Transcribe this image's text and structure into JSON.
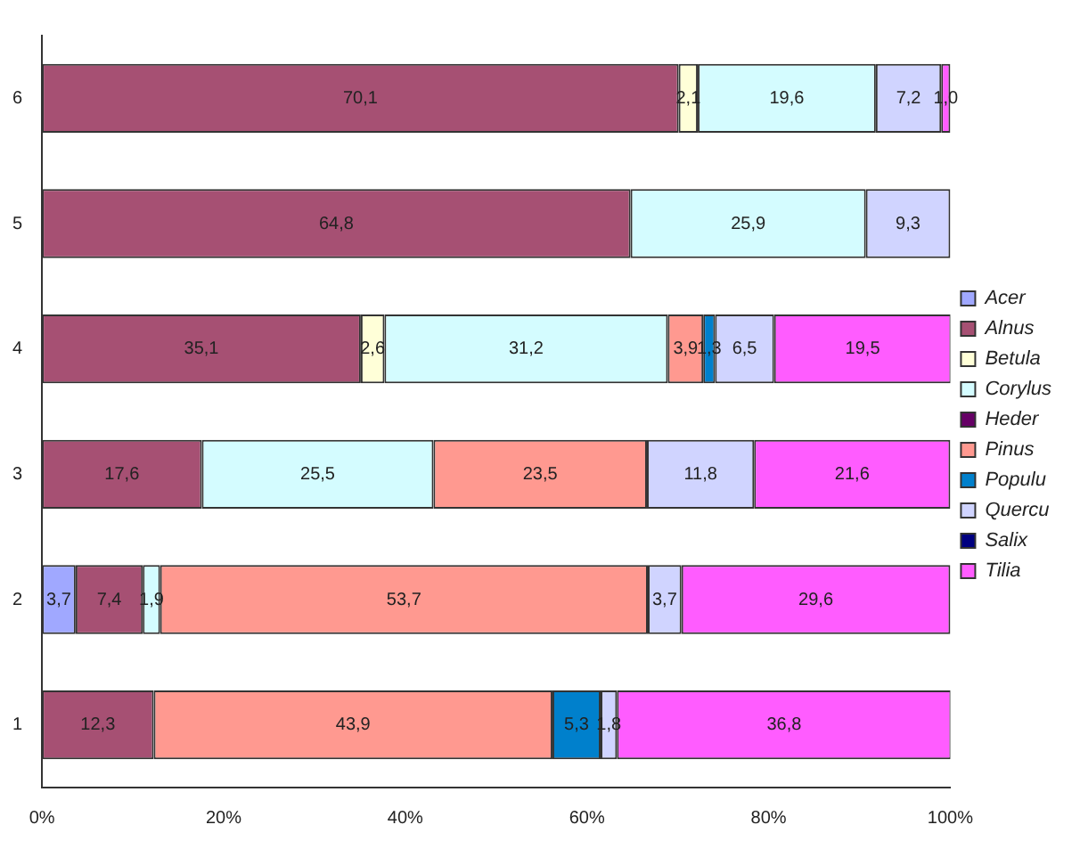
{
  "chart_data": {
    "type": "bar",
    "orientation": "horizontal",
    "stacked": true,
    "categories": [
      "6",
      "5",
      "4",
      "3",
      "2",
      "1"
    ],
    "series": [
      {
        "name": "Acer",
        "color": "#a0a8ff",
        "values": [
          null,
          null,
          null,
          null,
          3.7,
          null
        ],
        "value_labels": [
          null,
          null,
          null,
          null,
          "3,7",
          null
        ]
      },
      {
        "name": "Alnus",
        "color": "#a65073",
        "values": [
          70.1,
          64.8,
          35.1,
          17.6,
          7.4,
          12.3
        ],
        "value_labels": [
          "70,1",
          "64,8",
          "35,1",
          "17,6",
          "7,4",
          "12,3"
        ]
      },
      {
        "name": "Betula",
        "color": "#ffffd8",
        "values": [
          2.1,
          null,
          2.6,
          null,
          null,
          null
        ],
        "value_labels": [
          "2,1",
          null,
          "2,6",
          null,
          null,
          null
        ]
      },
      {
        "name": "Corylus",
        "color": "#d4fcff",
        "values": [
          19.6,
          25.9,
          31.2,
          25.5,
          1.9,
          null
        ],
        "value_labels": [
          "19,6",
          "25,9",
          "31,2",
          "25,5",
          "1,9",
          null
        ]
      },
      {
        "name": "Heder",
        "color": "#660066",
        "values": [
          null,
          null,
          null,
          null,
          null,
          null
        ]
      },
      {
        "name": "Pinus",
        "color": "#ff9990",
        "values": [
          null,
          null,
          3.9,
          23.5,
          53.7,
          43.9
        ],
        "value_labels": [
          null,
          null,
          "3,9",
          "23,5",
          "53,7",
          "43,9"
        ]
      },
      {
        "name": "Populu",
        "color": "#0080cc",
        "values": [
          null,
          null,
          1.3,
          null,
          null,
          5.3
        ],
        "value_labels": [
          null,
          null,
          "1,3",
          null,
          null,
          "5,3"
        ]
      },
      {
        "name": "Quercu",
        "color": "#d0d4ff",
        "values": [
          7.2,
          9.3,
          6.5,
          11.8,
          3.7,
          1.8
        ],
        "value_labels": [
          "7,2",
          "9,3",
          "6,5",
          "11,8",
          "3,7",
          "1,8"
        ]
      },
      {
        "name": "Salix",
        "color": "#000080",
        "values": [
          null,
          null,
          null,
          null,
          null,
          null
        ]
      },
      {
        "name": "Tilia",
        "color": "#ff5cff",
        "values": [
          1.0,
          null,
          19.5,
          21.6,
          29.6,
          36.8
        ],
        "value_labels": [
          "1,0",
          null,
          "19,5",
          "21,6",
          "29,6",
          "36,8"
        ]
      }
    ],
    "xlim": [
      0,
      100
    ],
    "xticks": [
      {
        "value": 0,
        "label": "0%"
      },
      {
        "value": 20,
        "label": "20%"
      },
      {
        "value": 40,
        "label": "40%"
      },
      {
        "value": 60,
        "label": "60%"
      },
      {
        "value": 80,
        "label": "80%"
      },
      {
        "value": 100,
        "label": "100%"
      }
    ],
    "grid": false,
    "legend": "right"
  }
}
